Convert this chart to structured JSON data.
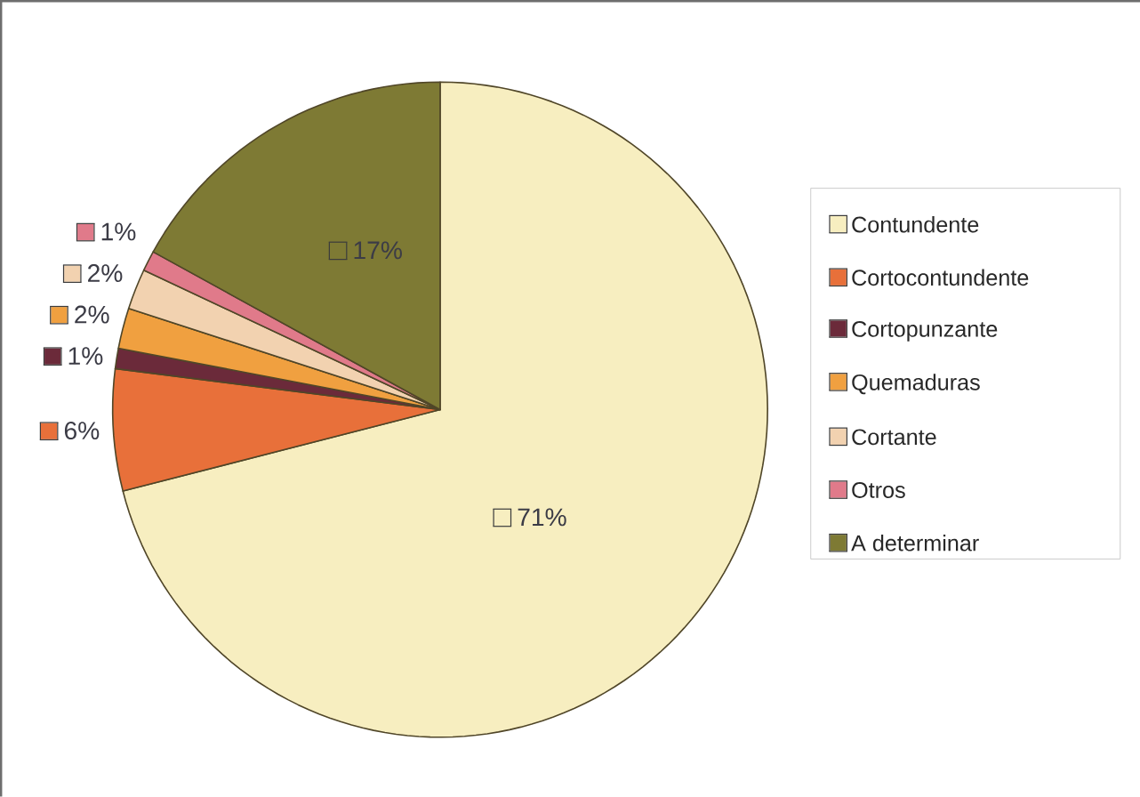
{
  "chart_data": {
    "type": "pie",
    "categories": [
      "Contundente",
      "Cortocontundente",
      "Cortopunzante",
      "Quemaduras",
      "Cortante",
      "Otros",
      "A determinar"
    ],
    "values": [
      71,
      6,
      1,
      2,
      2,
      1,
      17
    ],
    "value_labels": [
      "71%",
      "6%",
      "1%",
      "2%",
      "2%",
      "1%",
      "17%"
    ],
    "colors": [
      "#f7eec0",
      "#e8703a",
      "#6b2a3a",
      "#f0a040",
      "#f2d2b0",
      "#e07a8a",
      "#7e7a34"
    ],
    "legend": "right"
  }
}
